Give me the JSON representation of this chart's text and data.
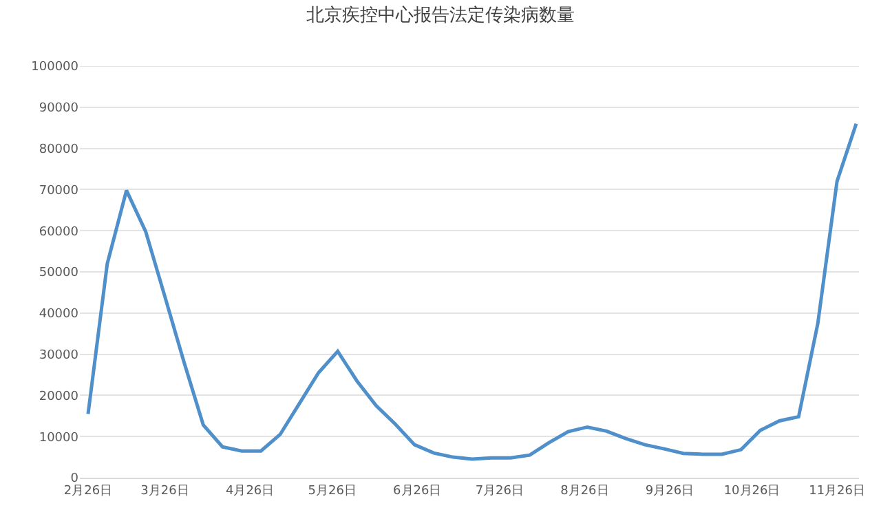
{
  "chart_data": {
    "type": "line",
    "title": "北京疾控中心报告法定传染病数量",
    "x": [
      "--02-26",
      "--03-05",
      "--03-12",
      "--03-19",
      "--03-26",
      "--04-02",
      "--04-09",
      "--04-16",
      "--04-23",
      "--04-30",
      "--05-07",
      "--05-14",
      "--05-21",
      "--05-28",
      "--06-04",
      "--06-11",
      "--06-18",
      "--06-25",
      "--07-02",
      "--07-09",
      "--07-16",
      "--07-23",
      "--07-30",
      "--08-06",
      "--08-13",
      "--08-20",
      "--08-27",
      "--09-03",
      "--09-10",
      "--09-17",
      "--09-24",
      "--10-01",
      "--10-08",
      "--10-15",
      "--10-22",
      "--10-29",
      "--11-05",
      "--11-12",
      "--11-19",
      "--11-26",
      "--12-03"
    ],
    "series": [
      {
        "color": "#4f8fca",
        "values": [
          15500,
          52000,
          69800,
          59800,
          44000,
          28000,
          12800,
          7500,
          6500,
          6500,
          10500,
          18000,
          25500,
          30700,
          23500,
          17500,
          13000,
          8000,
          6000,
          5000,
          4500,
          4800,
          4800,
          5500,
          8500,
          11200,
          12300,
          11300,
          9500,
          8000,
          7000,
          5900,
          5700,
          5700,
          6800,
          11500,
          13800,
          14800,
          37500,
          72000,
          86000
        ]
      }
    ],
    "xlim": [
      "--02-23",
      "--12-04"
    ],
    "xticks": [
      {
        "value": "--02-26",
        "label": "2月26日"
      },
      {
        "value": "--03-26",
        "label": "3月26日"
      },
      {
        "value": "--04-26",
        "label": "4月26日"
      },
      {
        "value": "--05-26",
        "label": "5月26日"
      },
      {
        "value": "--06-26",
        "label": "6月26日"
      },
      {
        "value": "--07-26",
        "label": "7月26日"
      },
      {
        "value": "--08-26",
        "label": "8月26日"
      },
      {
        "value": "--09-26",
        "label": "9月26日"
      },
      {
        "value": "--10-26",
        "label": "10月26日"
      },
      {
        "value": "--11-26",
        "label": "11月26日"
      }
    ],
    "ylim": [
      0,
      100000
    ],
    "yticks": [
      0,
      10000,
      20000,
      30000,
      40000,
      50000,
      60000,
      70000,
      80000,
      90000,
      100000
    ],
    "grid": "y",
    "marker": "none",
    "line_style": "solid"
  }
}
